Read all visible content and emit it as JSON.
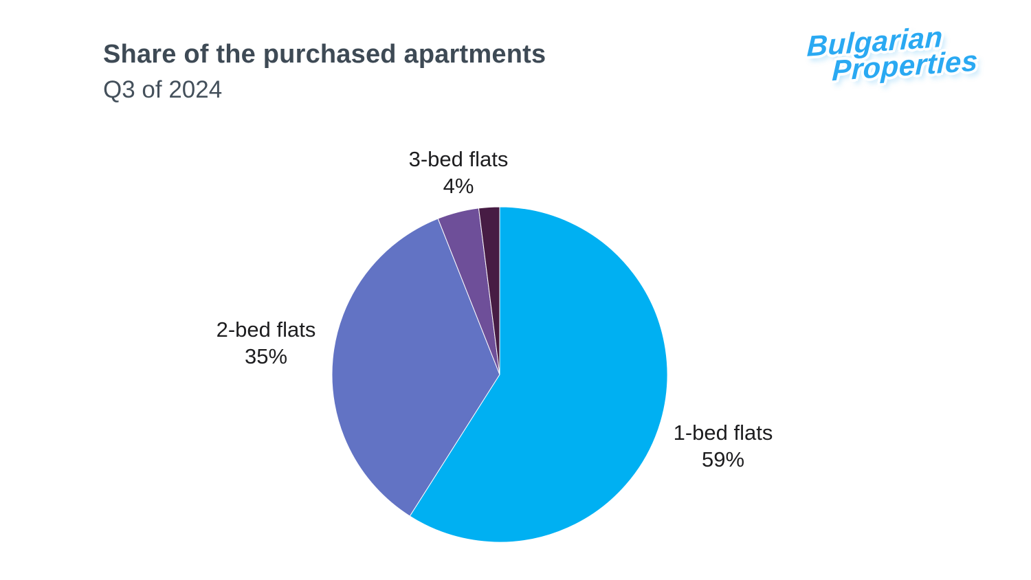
{
  "header": {
    "title": "Share of the purchased apartments",
    "subtitle": "Q3 of 2024"
  },
  "logo": {
    "line1": "Bulgarian",
    "line2": "Properties",
    "brand_color": "#2aa9f2"
  },
  "chart_data": {
    "type": "pie",
    "title": "Share of the purchased apartments — Q3 of 2024",
    "direction": "clockwise",
    "start_angle_deg": -90,
    "legend_position": "none",
    "slices": [
      {
        "label": "1-bed flats",
        "pct_label": "59%",
        "value": 59,
        "color": "#00b0f2"
      },
      {
        "label": "2-bed flats",
        "pct_label": "35%",
        "value": 35,
        "color": "#6273c4"
      },
      {
        "label": "3-bed flats",
        "pct_label": "4%",
        "value": 4,
        "color": "#6e4f99"
      },
      {
        "label": "",
        "pct_label": "",
        "value": 2,
        "color": "#471c44",
        "estimated": true
      }
    ]
  }
}
